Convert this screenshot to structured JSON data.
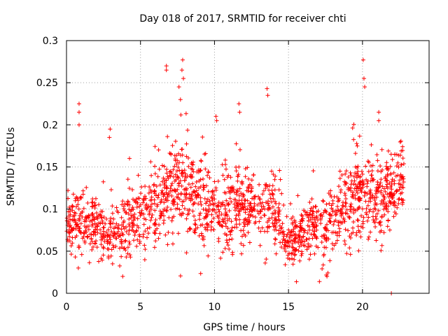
{
  "chart_data": {
    "type": "scatter",
    "title": "Day 018 of 2017, SRMTID for receiver chti",
    "xlabel": "GPS time / hours",
    "ylabel": "SRMTID / TECUs",
    "xlim": [
      0,
      24.5
    ],
    "ylim": [
      0,
      0.3
    ],
    "xticks": [
      "0",
      "5",
      "10",
      "15",
      "20"
    ],
    "xtick_values": [
      0,
      5,
      10,
      15,
      20
    ],
    "yticks": [
      "0",
      "0.05",
      "0.1",
      "0.15",
      "0.2",
      "0.25",
      "0.3"
    ],
    "ytick_values": [
      0,
      0.05,
      0.1,
      0.15,
      0.2,
      0.25,
      0.3
    ],
    "grid": true,
    "marker": "plus",
    "color": "#ff0000",
    "point_count": 1800,
    "trend": [
      {
        "x": 0.0,
        "y": 0.085
      },
      {
        "x": 1.0,
        "y": 0.085
      },
      {
        "x": 2.0,
        "y": 0.075
      },
      {
        "x": 2.8,
        "y": 0.065
      },
      {
        "x": 3.5,
        "y": 0.07
      },
      {
        "x": 4.5,
        "y": 0.085
      },
      {
        "x": 5.5,
        "y": 0.09
      },
      {
        "x": 6.5,
        "y": 0.11
      },
      {
        "x": 7.5,
        "y": 0.125
      },
      {
        "x": 8.5,
        "y": 0.115
      },
      {
        "x": 9.5,
        "y": 0.1
      },
      {
        "x": 10.5,
        "y": 0.095
      },
      {
        "x": 11.5,
        "y": 0.105
      },
      {
        "x": 12.5,
        "y": 0.1
      },
      {
        "x": 13.5,
        "y": 0.095
      },
      {
        "x": 14.3,
        "y": 0.09
      },
      {
        "x": 14.8,
        "y": 0.06
      },
      {
        "x": 15.5,
        "y": 0.065
      },
      {
        "x": 16.5,
        "y": 0.08
      },
      {
        "x": 17.5,
        "y": 0.075
      },
      {
        "x": 18.5,
        "y": 0.09
      },
      {
        "x": 19.5,
        "y": 0.115
      },
      {
        "x": 20.3,
        "y": 0.12
      },
      {
        "x": 21.0,
        "y": 0.105
      },
      {
        "x": 22.0,
        "y": 0.12
      },
      {
        "x": 22.8,
        "y": 0.13
      }
    ],
    "spread": [
      {
        "x": 0.0,
        "s": 0.022
      },
      {
        "x": 2.0,
        "s": 0.02
      },
      {
        "x": 4.0,
        "s": 0.02
      },
      {
        "x": 6.5,
        "s": 0.032
      },
      {
        "x": 8.0,
        "s": 0.032
      },
      {
        "x": 10.0,
        "s": 0.026
      },
      {
        "x": 12.0,
        "s": 0.026
      },
      {
        "x": 14.0,
        "s": 0.024
      },
      {
        "x": 15.5,
        "s": 0.015
      },
      {
        "x": 17.0,
        "s": 0.022
      },
      {
        "x": 19.5,
        "s": 0.03
      },
      {
        "x": 21.0,
        "s": 0.028
      },
      {
        "x": 22.8,
        "s": 0.022
      }
    ],
    "x_range_data": [
      0.0,
      22.8
    ],
    "highlights": [
      {
        "x": 0.85,
        "y": 0.225
      },
      {
        "x": 0.85,
        "y": 0.215
      },
      {
        "x": 0.85,
        "y": 0.2
      },
      {
        "x": 2.95,
        "y": 0.195
      },
      {
        "x": 2.9,
        "y": 0.185
      },
      {
        "x": 6.75,
        "y": 0.27
      },
      {
        "x": 6.75,
        "y": 0.265
      },
      {
        "x": 7.85,
        "y": 0.277
      },
      {
        "x": 7.8,
        "y": 0.265
      },
      {
        "x": 7.9,
        "y": 0.255
      },
      {
        "x": 7.6,
        "y": 0.245
      },
      {
        "x": 7.7,
        "y": 0.23
      },
      {
        "x": 10.1,
        "y": 0.21
      },
      {
        "x": 10.15,
        "y": 0.205
      },
      {
        "x": 11.65,
        "y": 0.225
      },
      {
        "x": 11.7,
        "y": 0.215
      },
      {
        "x": 13.55,
        "y": 0.243
      },
      {
        "x": 13.6,
        "y": 0.235
      },
      {
        "x": 20.05,
        "y": 0.277
      },
      {
        "x": 20.1,
        "y": 0.255
      },
      {
        "x": 20.15,
        "y": 0.245
      },
      {
        "x": 21.1,
        "y": 0.215
      },
      {
        "x": 21.1,
        "y": 0.205
      },
      {
        "x": 3.8,
        "y": 0.02
      },
      {
        "x": 17.6,
        "y": 0.02
      },
      {
        "x": 21.95,
        "y": 0.0
      },
      {
        "x": 0.8,
        "y": 0.03
      }
    ]
  }
}
